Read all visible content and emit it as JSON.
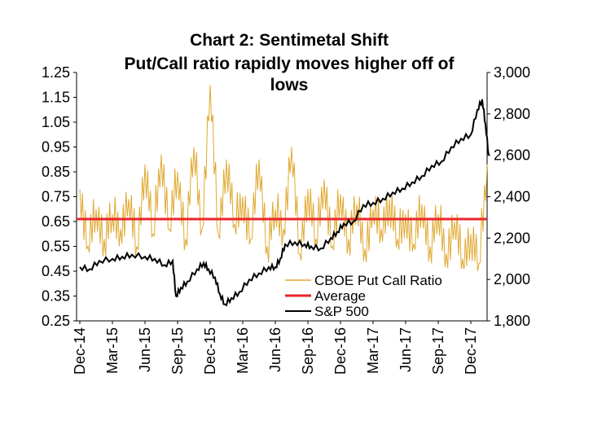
{
  "chart_data": {
    "type": "line",
    "title": "Chart 2: Sentimetal Shift",
    "subtitle": [
      "Put/Call ratio rapidly moves higher off of",
      "lows"
    ],
    "x_tick_labels": [
      "Dec-14",
      "Mar-15",
      "Jun-15",
      "Sep-15",
      "Dec-15",
      "Mar-16",
      "Jun-16",
      "Sep-16",
      "Dec-16",
      "Mar-17",
      "Jun-17",
      "Sep-17",
      "Dec-17"
    ],
    "y_left": {
      "min": 0.25,
      "max": 1.25,
      "ticks": [
        1.25,
        1.15,
        1.05,
        0.95,
        0.85,
        0.75,
        0.65,
        0.55,
        0.45,
        0.35,
        0.25
      ],
      "tick_labels": [
        "1.25",
        "1.15",
        "1.05",
        "0.95",
        "0.85",
        "0.75",
        "0.65",
        "0.55",
        "0.45",
        "0.35",
        "0.25"
      ]
    },
    "y_right": {
      "min": 1800,
      "max": 3000,
      "ticks": [
        3000,
        2800,
        2600,
        2400,
        2200,
        2000,
        1800
      ],
      "tick_labels": [
        "3,000",
        "2,800",
        "2,600",
        "2,400",
        "2,200",
        "2,000",
        "1,800"
      ]
    },
    "series": [
      {
        "name": "CBOE Put Call Ratio",
        "axis": "left",
        "color": "#E0A830",
        "x": [
          0,
          0.25,
          0.5,
          0.75,
          1,
          1.25,
          1.5,
          1.75,
          2,
          2.25,
          2.5,
          2.75,
          3,
          3.25,
          3.5,
          3.75,
          4,
          4.25,
          4.5,
          4.75,
          5,
          5.25,
          5.5,
          5.75,
          6,
          6.25,
          6.5,
          6.75,
          7,
          7.25,
          7.5,
          7.75,
          8,
          8.25,
          8.5,
          8.75,
          9,
          9.25,
          9.5,
          9.75,
          10,
          10.25,
          10.5,
          10.75,
          11,
          11.25,
          11.5,
          11.75,
          12,
          12.25,
          12.5
        ],
        "values": [
          0.78,
          0.55,
          0.7,
          0.58,
          0.68,
          0.62,
          0.74,
          0.55,
          0.88,
          0.6,
          0.92,
          0.62,
          0.85,
          0.58,
          0.95,
          0.62,
          1.2,
          0.6,
          0.9,
          0.64,
          0.75,
          0.58,
          0.9,
          0.55,
          0.7,
          0.62,
          0.95,
          0.52,
          0.78,
          0.58,
          0.82,
          0.55,
          0.76,
          0.58,
          0.72,
          0.54,
          0.7,
          0.62,
          0.74,
          0.58,
          0.68,
          0.56,
          0.72,
          0.55,
          0.68,
          0.52,
          0.65,
          0.5,
          0.6,
          0.48,
          0.88
        ]
      },
      {
        "name": "Average",
        "axis": "left",
        "color": "#E8262A",
        "x": [
          0,
          12.55
        ],
        "values": [
          0.66,
          0.66
        ]
      },
      {
        "name": "S&P 500",
        "axis": "right",
        "color": "#000000",
        "x": [
          0,
          0.3,
          0.6,
          1,
          1.3,
          1.6,
          2,
          2.3,
          2.6,
          2.85,
          2.95,
          3.1,
          3.3,
          3.6,
          3.8,
          3.95,
          4.15,
          4.3,
          4.45,
          4.65,
          4.9,
          5.2,
          5.5,
          5.8,
          6,
          6.15,
          6.3,
          6.6,
          6.9,
          7.1,
          7.4,
          7.7,
          7.9,
          8.1,
          8.4,
          8.7,
          9,
          9.3,
          9.6,
          9.9,
          10.2,
          10.5,
          10.8,
          11.1,
          11.4,
          11.7,
          12,
          12.2,
          12.35,
          12.45,
          12.55
        ],
        "values": [
          2060,
          2050,
          2090,
          2100,
          2110,
          2120,
          2110,
          2100,
          2070,
          2090,
          1920,
          1960,
          1990,
          2050,
          2080,
          2050,
          2010,
          1930,
          1880,
          1910,
          1940,
          2000,
          2030,
          2060,
          2060,
          2100,
          2170,
          2180,
          2170,
          2160,
          2150,
          2200,
          2230,
          2270,
          2280,
          2360,
          2370,
          2390,
          2420,
          2440,
          2470,
          2500,
          2550,
          2570,
          2640,
          2680,
          2700,
          2820,
          2870,
          2750,
          2600
        ]
      }
    ],
    "legend": [
      "CBOE Put Call Ratio",
      "Average",
      "S&P 500"
    ],
    "legend_position": "lower-right"
  }
}
